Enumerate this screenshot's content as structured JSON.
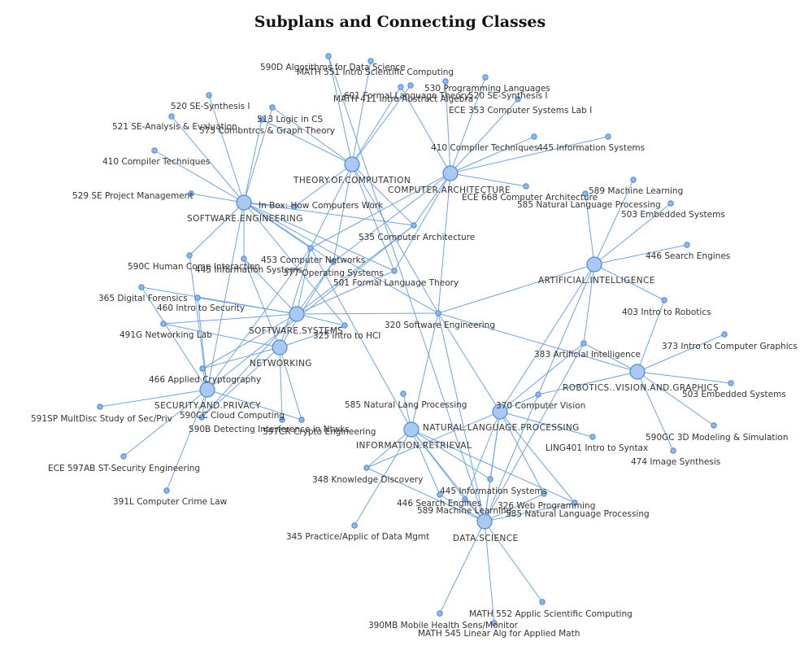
{
  "title": "Subplans and Connecting Classes",
  "colors": {
    "edge": "#6fa3e0",
    "node_fill": "#a9c8f2",
    "node_stroke": "#4f87d3"
  },
  "hubs": {
    "software_engineering": "SOFTWARE.ENGINEERING",
    "theory_of_computation": "THEORY.OF.COMPUTATION",
    "computer_architecture": "COMPUTER.ARCHITECTURE",
    "artificial_intelligence": "ARTIFICIAL.INTELLIGENCE",
    "software_systems": "SOFTWARE.SYSTEMS",
    "networking": "NETWORKING",
    "security_and_privacy": "SECURITY.AND.PRIVACY",
    "robotics_vision_graphics": "ROBOTICS..VISION.AND.GRAPHICS",
    "natural_language_processing": "NATURAL.LANGUAGE.PROCESSING",
    "information_retrieval": "INFORMATION.RETRIEVAL",
    "data_science": "DATA.SCIENCE"
  },
  "classes": {
    "c590d": "590D  Algorithms for Data Science",
    "math551": "MATH 551  Intro Scientific Computing",
    "c601": "601  Formal Language Theory",
    "math411": "MATH 411  Intro Abstract Algebra",
    "c530": "530  Programming Languages",
    "c520a": "520  SE-Synthesis I",
    "ece353": "ECE 353  Computer Systems Lab I",
    "c520b": "520  SE-Synthesis I",
    "c521": "521  SE-Analysis & Evaluation",
    "c513": "513  Logic in CS",
    "c575": "575  Combntrcs & Graph Theory",
    "c410a": "410  Compiler Techniques",
    "c410b": "410  Compiler Techniques",
    "c445a": "445  Information Systems",
    "c529": "529  SE Project Management",
    "inbox": "In Box: How Computers Work",
    "ece668": "ECE 668  Computer Architecture",
    "c589a": "589  Machine Learning",
    "c585a": "585  Natural Language Processing",
    "c503a": "503  Embedded Systems",
    "c535": "535  Computer Architecture",
    "c446a": "446  Search Engines",
    "c453": "453  Computer Networks",
    "c590c": "590C  Human Comp Interaction",
    "c445b": "445  Information Systems",
    "c377": "377  Operating Systems",
    "c501": "501  Formal Language Theory",
    "c365": "365  Digital Forensics",
    "c460": "460  Intro to Security",
    "c403": "403  Intro to Robotics",
    "c320": "320  Software Engineering",
    "c491g": "491G  Networking Lab",
    "c325": "325  Intro to HCI",
    "c373": "373  Intro to Computer Graphics",
    "c383": "383  Artificial Intelligence",
    "c466": "466  Applied Cryptography",
    "c503b": "503  Embedded Systems",
    "c585b": "585 Natural Lang Processing",
    "c370": "370  Computer Vision",
    "c591sp": "591SP  MultDisc Study of Sec/Priv",
    "c590cc": "590CC  Cloud Computing",
    "c590b": "590B  Detecting Interference in Ntwks",
    "c597cr": "597CR  Crypto Engineering",
    "c590gc": "590GC  3D Modeling & Simulation",
    "ling401": "LING401 Intro to Syntax",
    "c474": "474  Image Synthesis",
    "ece597ab": "ECE 597AB  ST-Security Engineering",
    "c348": "348  Knowledge Discovery",
    "c391l": "391L  Computer Crime Law",
    "c445c": "445 Information Systems",
    "c446b": "446 Search Engines",
    "c326": "326  Web Programming",
    "c589b": "589  Machine Learning",
    "c585c": "585  Natural Language Processing",
    "c345": "345  Practice/Applic of Data Mgmt",
    "math552": "MATH 552  Applic Scientific Computing",
    "c390mb": "390MB  Mobile Health Sens/Monitor",
    "math545": "MATH 545 Linear Alg for Applied Math"
  }
}
